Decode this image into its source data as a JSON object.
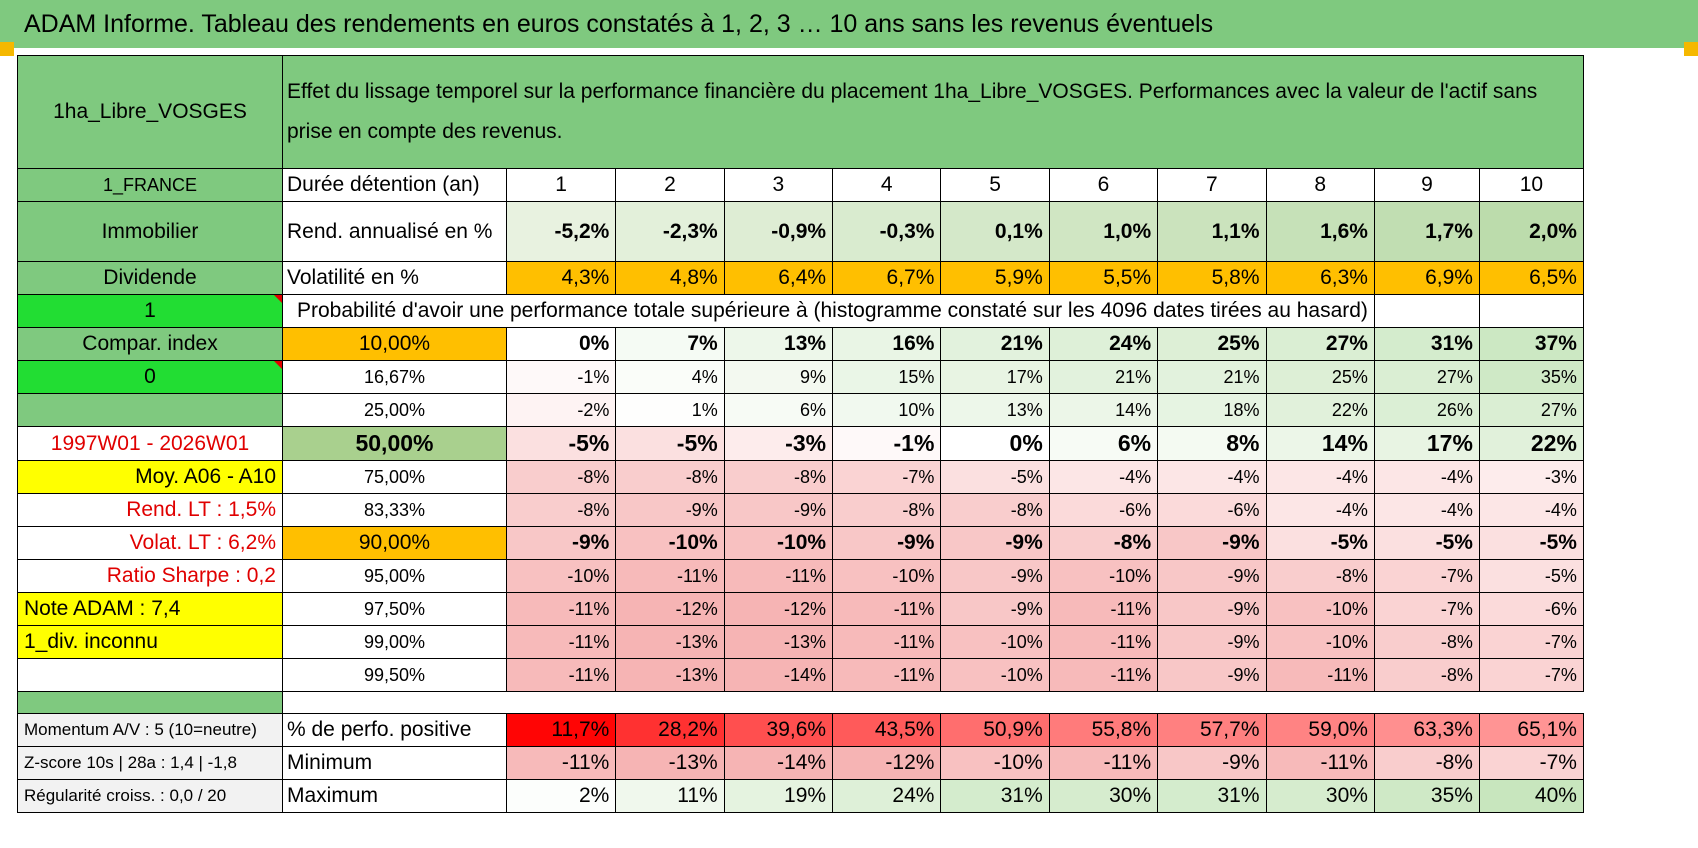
{
  "title": "ADAM Informe. Tableau des rendements en euros constatés à 1, 2, 3 … 10 ans sans les revenus éventuels",
  "header": {
    "asset": "1ha_Libre_VOSGES",
    "description": "Effet du lissage temporel sur la performance financière du placement 1ha_Libre_VOSGES. Performances avec la valeur de l'actif sans prise en compte des revenus."
  },
  "side": {
    "country": "1_FRANCE",
    "category": "Immobilier",
    "type": "Dividende",
    "flag1": "1",
    "compar": "Compar. index",
    "flag2": "0",
    "blank": "",
    "period": "1997W01 - 2026W01",
    "moy": "Moy. A06 - A10",
    "rend_lt": "Rend. LT :    1,5%",
    "volat_lt": "Volat. LT :    6,2%",
    "sharpe": "Ratio Sharpe :     0,2",
    "note": "Note ADAM : 7,4",
    "div": "1_div. inconnu"
  },
  "labels": {
    "duration": "Durée détention (an)",
    "rend": "Rend. annualisé en %",
    "vol": "Volatilité en %",
    "prob": "Probabilité d'avoir une performance totale supérieure à (histogramme constaté sur les 4096 dates tirées au hasard)",
    "pct_pos": "% de perfo. positive",
    "min": "Minimum",
    "max": "Maximum"
  },
  "years": [
    "1",
    "2",
    "3",
    "4",
    "5",
    "6",
    "7",
    "8",
    "9",
    "10"
  ],
  "rend": [
    "-5,2%",
    "-2,3%",
    "-0,9%",
    "-0,3%",
    "0,1%",
    "1,0%",
    "1,1%",
    "1,6%",
    "1,7%",
    "2,0%"
  ],
  "vol": [
    "4,3%",
    "4,8%",
    "6,4%",
    "6,7%",
    "5,9%",
    "5,5%",
    "5,8%",
    "6,3%",
    "6,9%",
    "6,5%"
  ],
  "quantiles": [
    {
      "label": "10,00%",
      "vals": [
        "0%",
        "7%",
        "13%",
        "16%",
        "21%",
        "24%",
        "25%",
        "27%",
        "31%",
        "37%"
      ]
    },
    {
      "label": "16,67%",
      "vals": [
        "-1%",
        "4%",
        "9%",
        "15%",
        "17%",
        "21%",
        "21%",
        "25%",
        "27%",
        "35%"
      ]
    },
    {
      "label": "25,00%",
      "vals": [
        "-2%",
        "1%",
        "6%",
        "10%",
        "13%",
        "14%",
        "18%",
        "22%",
        "26%",
        "27%"
      ]
    },
    {
      "label": "50,00%",
      "vals": [
        "-5%",
        "-5%",
        "-3%",
        "-1%",
        "0%",
        "6%",
        "8%",
        "14%",
        "17%",
        "22%"
      ]
    },
    {
      "label": "75,00%",
      "vals": [
        "-8%",
        "-8%",
        "-8%",
        "-7%",
        "-5%",
        "-4%",
        "-4%",
        "-4%",
        "-4%",
        "-3%"
      ]
    },
    {
      "label": "83,33%",
      "vals": [
        "-8%",
        "-9%",
        "-9%",
        "-8%",
        "-8%",
        "-6%",
        "-6%",
        "-4%",
        "-4%",
        "-4%"
      ]
    },
    {
      "label": "90,00%",
      "vals": [
        "-9%",
        "-10%",
        "-10%",
        "-9%",
        "-9%",
        "-8%",
        "-9%",
        "-5%",
        "-5%",
        "-5%"
      ]
    },
    {
      "label": "95,00%",
      "vals": [
        "-10%",
        "-11%",
        "-11%",
        "-10%",
        "-9%",
        "-10%",
        "-9%",
        "-8%",
        "-7%",
        "-5%"
      ]
    },
    {
      "label": "97,50%",
      "vals": [
        "-11%",
        "-12%",
        "-12%",
        "-11%",
        "-9%",
        "-11%",
        "-9%",
        "-10%",
        "-7%",
        "-6%"
      ]
    },
    {
      "label": "99,00%",
      "vals": [
        "-11%",
        "-13%",
        "-13%",
        "-11%",
        "-10%",
        "-11%",
        "-9%",
        "-10%",
        "-8%",
        "-7%"
      ]
    },
    {
      "label": "99,50%",
      "vals": [
        "-11%",
        "-13%",
        "-14%",
        "-11%",
        "-10%",
        "-11%",
        "-9%",
        "-11%",
        "-8%",
        "-7%"
      ]
    }
  ],
  "bottom": {
    "momentum": "Momentum A/V : 5 (10=neutre)",
    "zscore": "Z-score 10s | 28a : 1,4 | -1,8",
    "regularite": "Régularité croiss. : 0,0 / 20"
  },
  "pct_pos": [
    "11,7%",
    "28,2%",
    "39,6%",
    "43,5%",
    "50,9%",
    "55,8%",
    "57,7%",
    "59,0%",
    "63,3%",
    "65,1%"
  ],
  "minimum": [
    "-11%",
    "-13%",
    "-14%",
    "-12%",
    "-10%",
    "-11%",
    "-9%",
    "-11%",
    "-8%",
    "-7%"
  ],
  "maximum": [
    "2%",
    "11%",
    "19%",
    "24%",
    "31%",
    "30%",
    "31%",
    "30%",
    "35%",
    "40%"
  ],
  "colors": {
    "header_green": "#7fc97f",
    "bright_green": "#22dd33",
    "yellow": "#ffff00",
    "orange": "#ffbf00",
    "red_text": "#e00000"
  }
}
